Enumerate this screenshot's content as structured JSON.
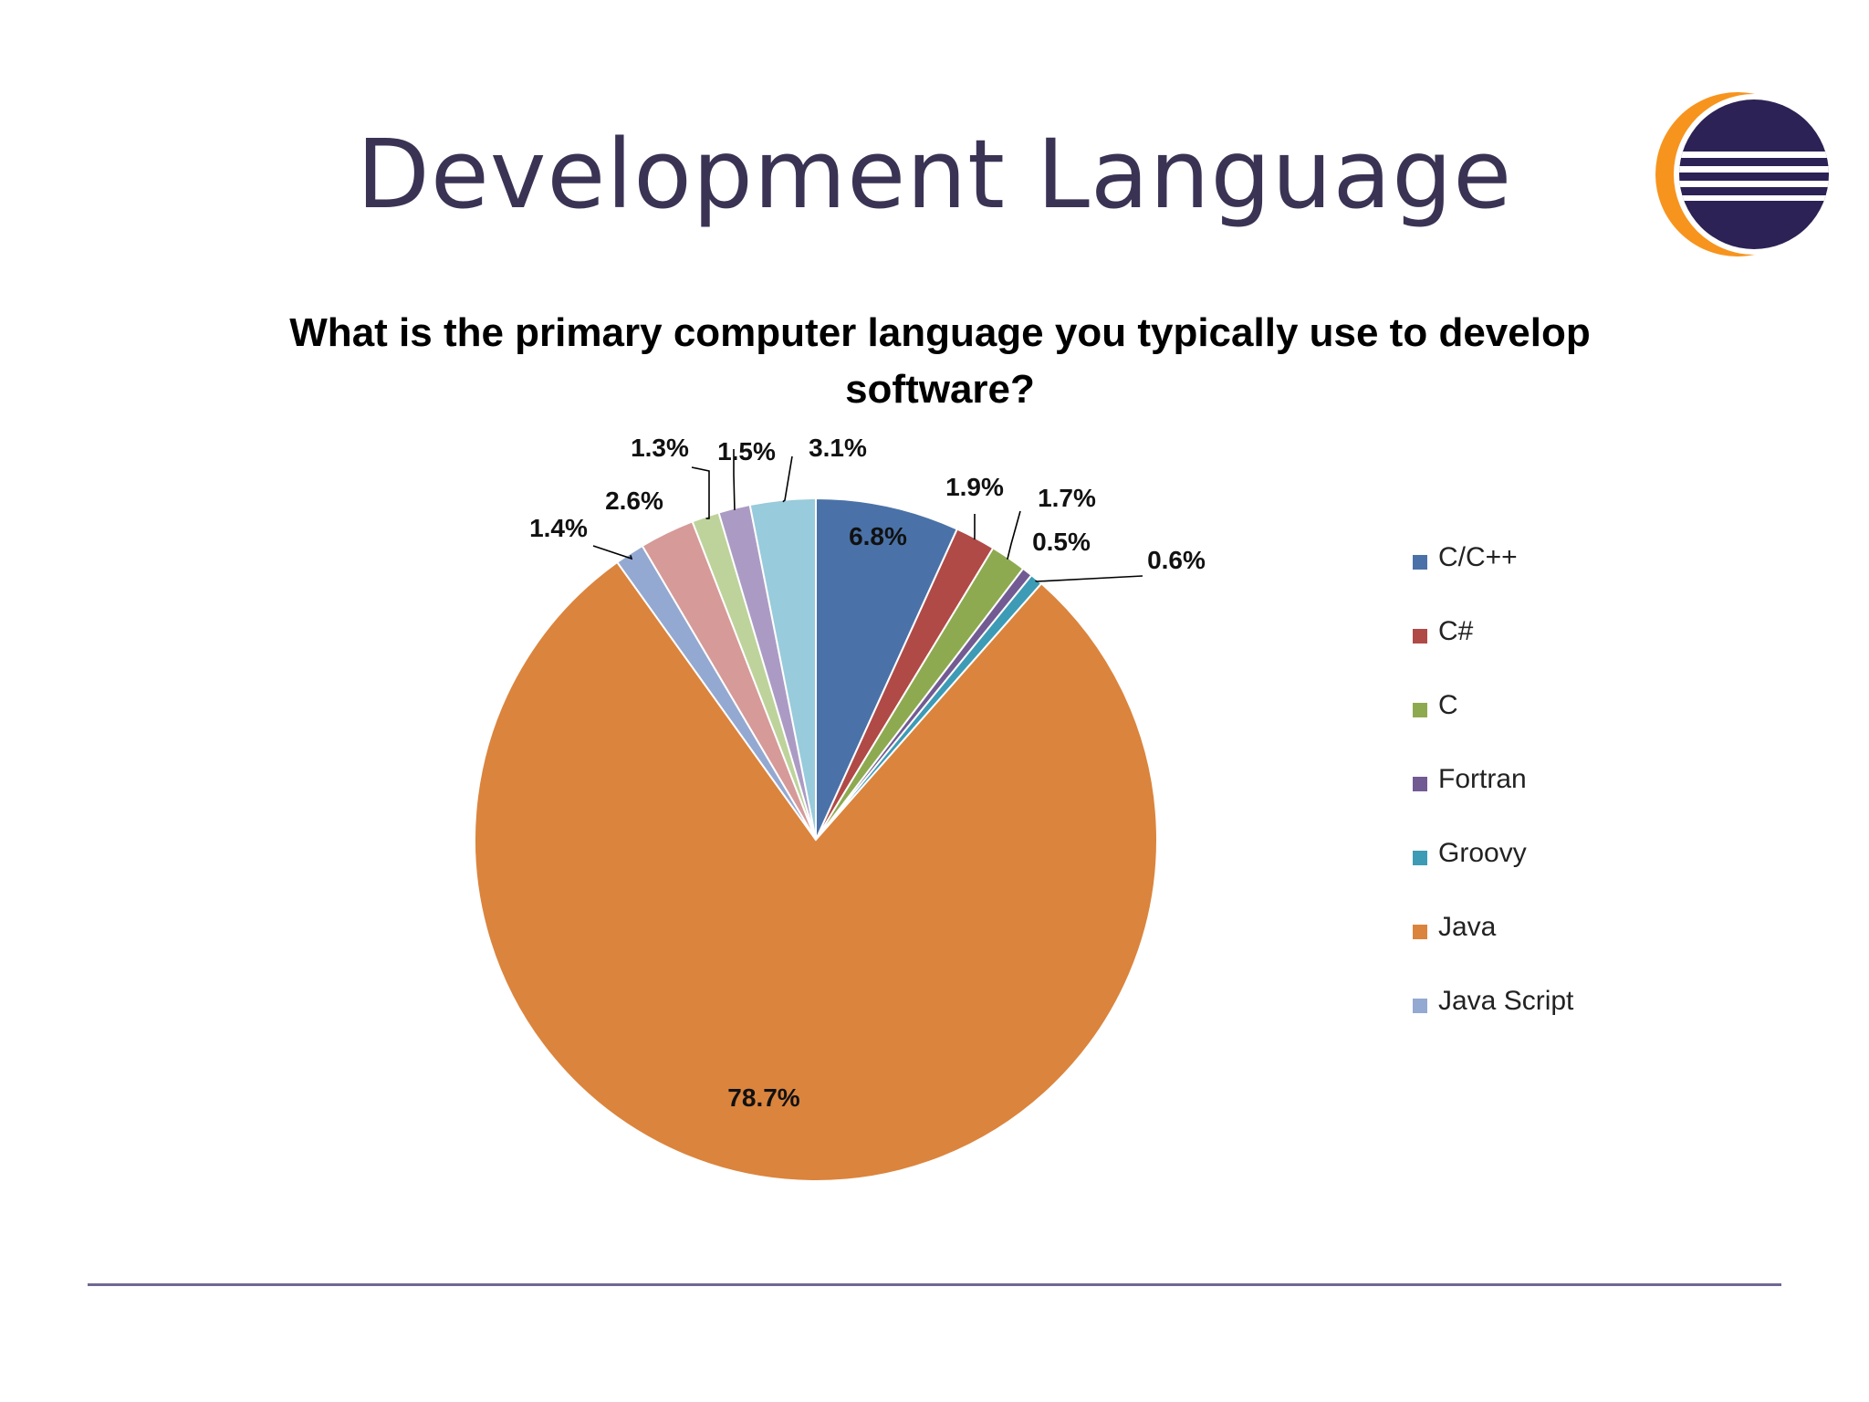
{
  "slide": {
    "title": "Development Language"
  },
  "logo": {
    "icon": "eclipse-logo-icon",
    "colors": {
      "ring": "#f7941e",
      "disk": "#2c2255",
      "stripes": "#ffffff"
    }
  },
  "chart_data": {
    "type": "pie",
    "title": "What is the primary computer language you typically use to develop software?",
    "start_angle_deg": 0,
    "direction": "clockwise",
    "legend_position": "right",
    "slices": [
      {
        "name": "C/C++",
        "value": 6.8,
        "label": "6.8%",
        "color": "#4a72a8"
      },
      {
        "name": "C#",
        "value": 1.9,
        "label": "1.9%",
        "color": "#b04a47"
      },
      {
        "name": "C",
        "value": 1.7,
        "label": "1.7%",
        "color": "#8eaa50"
      },
      {
        "name": "Fortran",
        "value": 0.5,
        "label": "0.5%",
        "color": "#725b93"
      },
      {
        "name": "Groovy",
        "value": 0.6,
        "label": "0.6%",
        "color": "#3d9bb5"
      },
      {
        "name": "Java",
        "value": 78.7,
        "label": "78.7%",
        "color": "#db843d"
      },
      {
        "name": "Java Script",
        "value": 1.4,
        "label": "1.4%",
        "color": "#94a9d1"
      },
      {
        "name": "",
        "value": 2.6,
        "label": "2.6%",
        "color": "#d69a98"
      },
      {
        "name": "",
        "value": 1.3,
        "label": "1.3%",
        "color": "#bdd39b"
      },
      {
        "name": "",
        "value": 1.5,
        "label": "1.5%",
        "color": "#ab9bc4"
      },
      {
        "name": "",
        "value": 3.1,
        "label": "3.1%",
        "color": "#98cbdb"
      }
    ],
    "legend": [
      "C/C++",
      "C#",
      "C",
      "Fortran",
      "Groovy",
      "Java",
      "Java Script"
    ]
  }
}
